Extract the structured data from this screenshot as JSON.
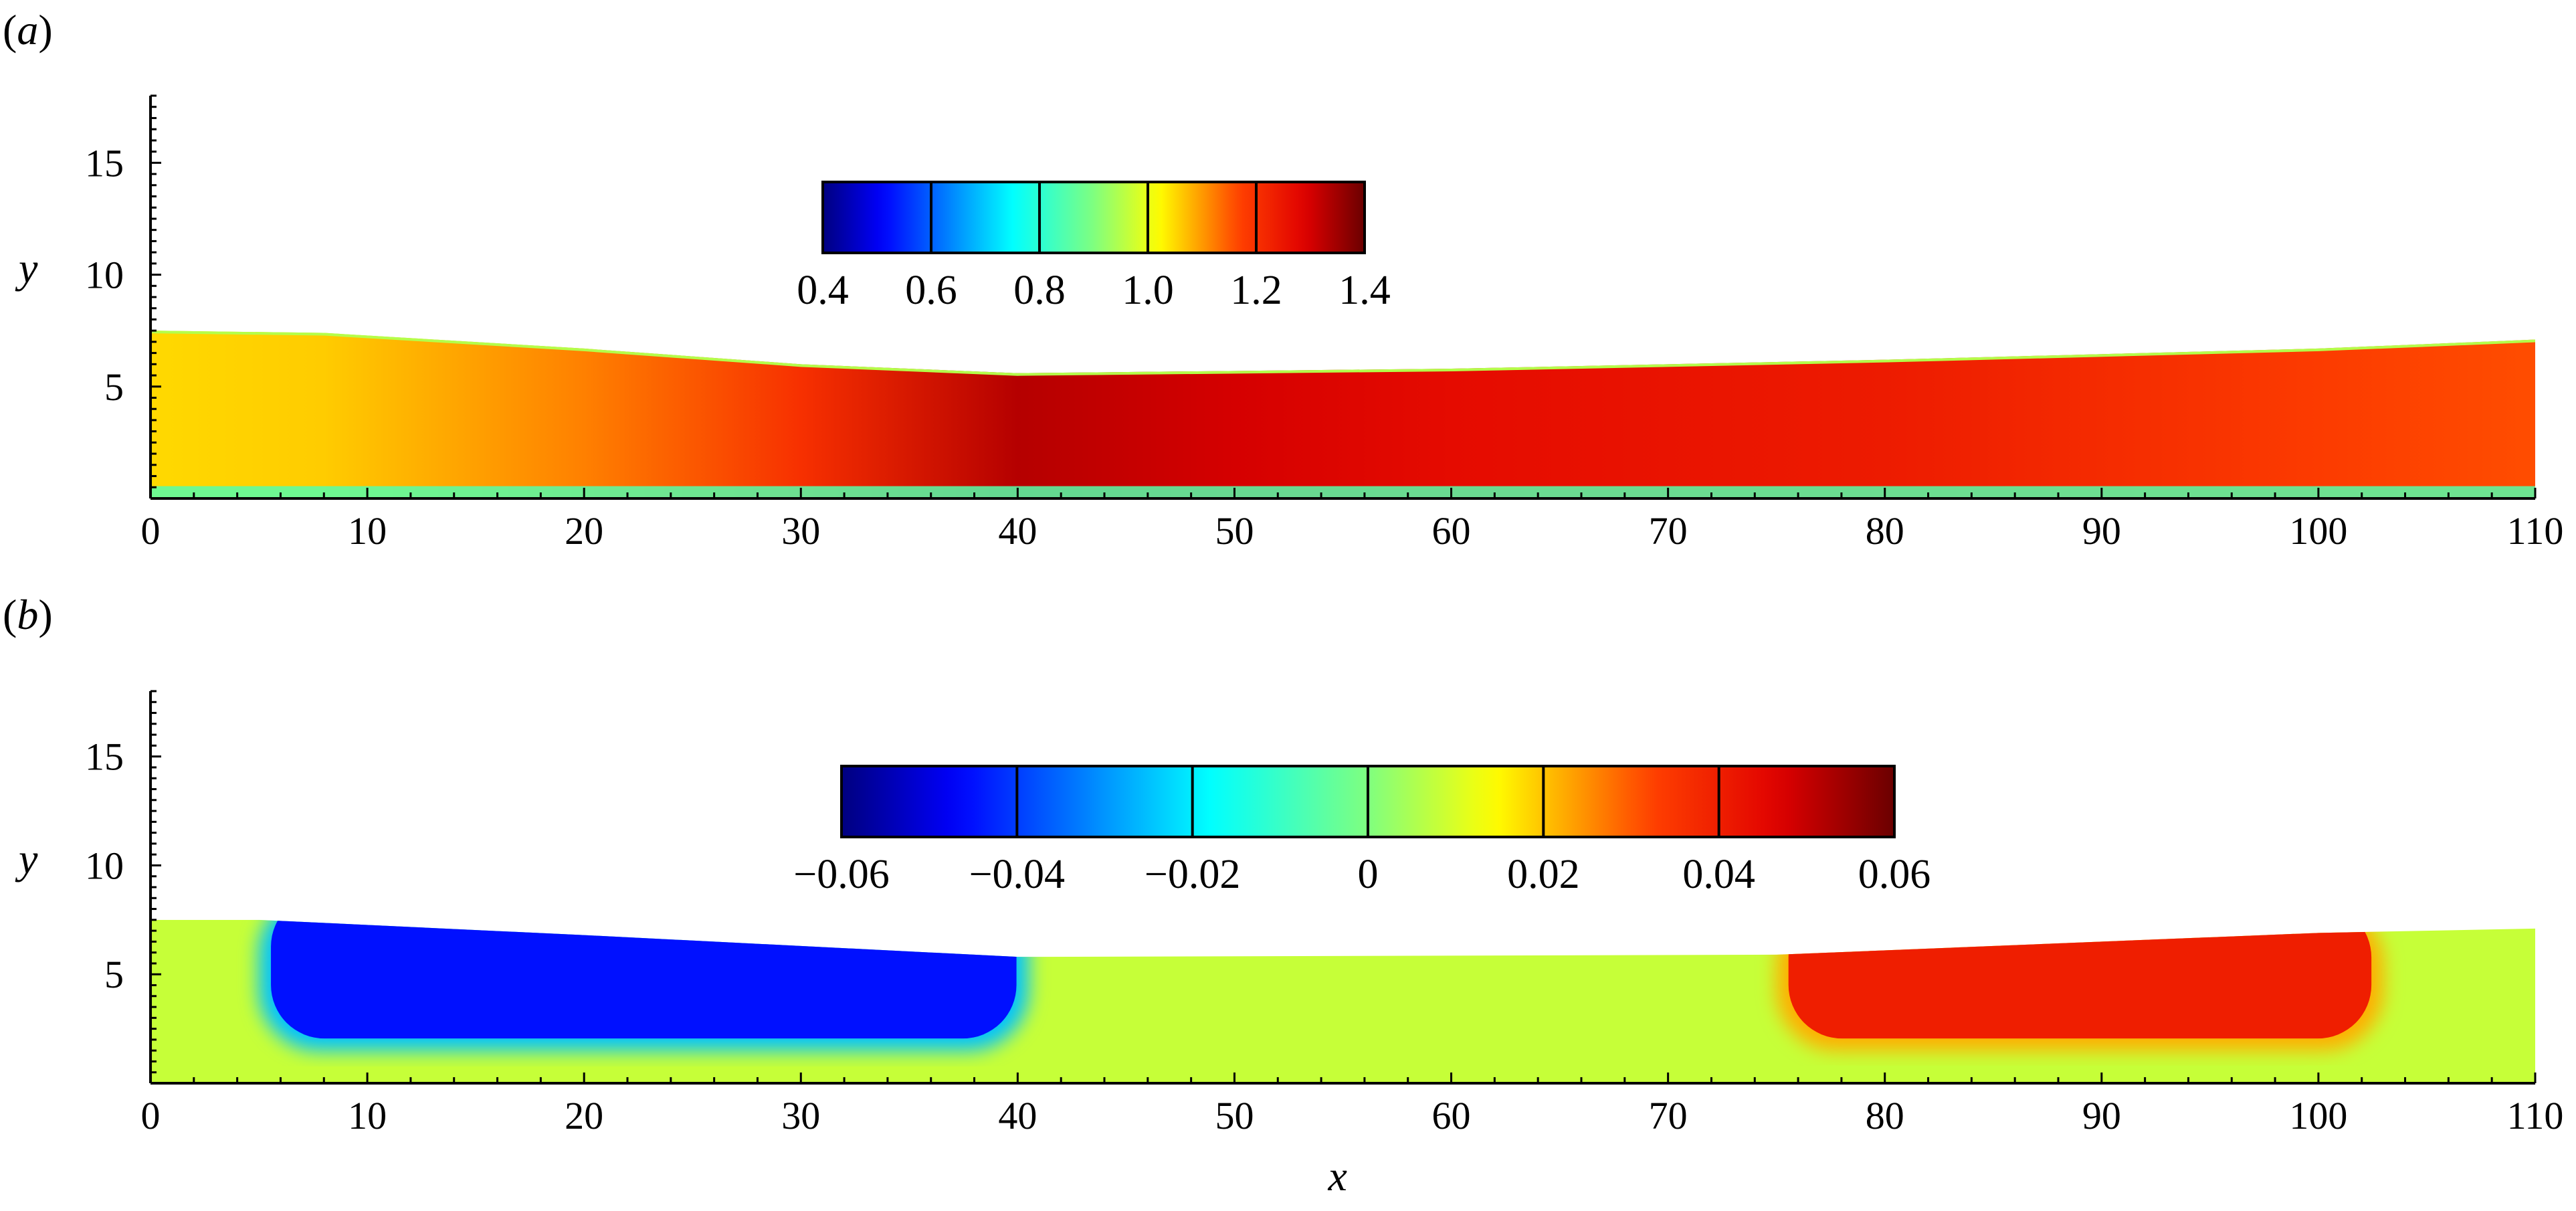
{
  "chart_data": [
    {
      "panel": "(a)",
      "type": "heatmap",
      "xlabel": "",
      "ylabel": "y",
      "xlim": [
        0,
        110
      ],
      "ylim": [
        0,
        18
      ],
      "xticks": [
        0,
        10,
        20,
        30,
        40,
        50,
        60,
        70,
        80,
        90,
        100,
        110
      ],
      "yticks": [
        5,
        10,
        15
      ],
      "colorbar": {
        "ticks": [
          0.4,
          0.6,
          0.8,
          1.0,
          1.2,
          1.4
        ],
        "tick_labels": [
          "0.4",
          "0.6",
          "0.8",
          "1.0",
          "1.2",
          "1.4"
        ],
        "range": [
          0.4,
          1.4
        ],
        "colormap": "jet"
      },
      "domain_upper_boundary": {
        "x": [
          0,
          8,
          20,
          30,
          40,
          60,
          80,
          100,
          110
        ],
        "y": [
          7.5,
          7.4,
          6.7,
          6.0,
          5.6,
          5.8,
          6.2,
          6.7,
          7.1
        ]
      },
      "field_profile_along_x": {
        "x": [
          0,
          8,
          20,
          30,
          40,
          50,
          60,
          80,
          100,
          110
        ],
        "value": [
          1.05,
          1.06,
          1.12,
          1.2,
          1.33,
          1.3,
          1.27,
          1.24,
          1.18,
          1.16
        ]
      }
    },
    {
      "panel": "(b)",
      "type": "heatmap",
      "xlabel": "x",
      "ylabel": "y",
      "xlim": [
        0,
        110
      ],
      "ylim": [
        0,
        18
      ],
      "xticks": [
        0,
        10,
        20,
        30,
        40,
        50,
        60,
        70,
        80,
        90,
        100,
        110
      ],
      "yticks": [
        5,
        10,
        15
      ],
      "colorbar": {
        "ticks": [
          -0.06,
          -0.04,
          -0.02,
          0,
          0.02,
          0.04,
          0.06
        ],
        "tick_labels": [
          "−0.06",
          "−0.04",
          "−0.02",
          "0",
          "0.02",
          "0.04",
          "0.06"
        ],
        "range": [
          -0.06,
          0.06
        ],
        "colormap": "jet"
      },
      "domain_upper_boundary": {
        "x": [
          0,
          5,
          20,
          40,
          41,
          75,
          100,
          110
        ],
        "y": [
          7.5,
          7.5,
          6.8,
          5.8,
          5.8,
          5.9,
          6.9,
          7.1
        ]
      },
      "regions": [
        {
          "x_range": [
            5,
            40.5
          ],
          "y_range": [
            1.5,
            7.5
          ],
          "value": -0.045
        },
        {
          "x_range": [
            75,
            103
          ],
          "y_range": [
            1.5,
            7.0
          ],
          "value": 0.04
        },
        {
          "x_range": [
            0,
            110
          ],
          "y_range": [
            0,
            7.5
          ],
          "value": 0.008,
          "role": "background"
        }
      ]
    }
  ]
}
